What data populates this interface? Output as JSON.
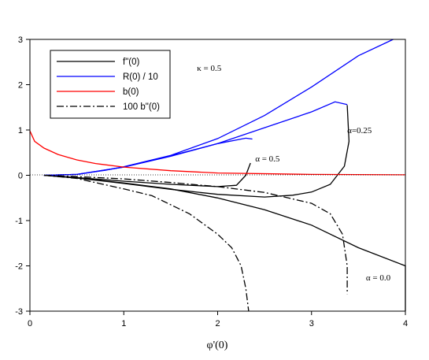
{
  "chart_data": {
    "type": "line",
    "xlabel": "φ'(0)",
    "ylabel": "",
    "xlim": [
      0,
      4
    ],
    "ylim": [
      -3,
      3
    ],
    "x_ticks": [
      "0",
      "1",
      "2",
      "3",
      "4"
    ],
    "y_ticks": [
      "-3",
      "-2",
      "-1",
      "0",
      "1",
      "2",
      "3"
    ],
    "grid": false,
    "legend_position": "top-left",
    "legend": [
      {
        "label": "f\"(0)",
        "color": "#000000",
        "dash": "solid"
      },
      {
        "label": "R(0) / 10",
        "color": "#0000ff",
        "dash": "solid"
      },
      {
        "label": "b(0)",
        "color": "#ff0000",
        "dash": "solid"
      },
      {
        "label": "100 b\"(0)",
        "color": "#000000",
        "dash": "dashdot"
      }
    ],
    "annotations": [
      {
        "text": "κ = 0.5",
        "x": 1.78,
        "y": 2.37
      },
      {
        "text": "α=0.25",
        "x": 3.38,
        "y": 1.0
      },
      {
        "text": "α = 0.5",
        "x": 2.4,
        "y": 0.37
      },
      {
        "text": "α = 0.0",
        "x": 3.58,
        "y": -2.25
      }
    ],
    "series": [
      {
        "color": "#000000",
        "dash": "solid",
        "points": [
          [
            0.15,
            0
          ],
          [
            0.5,
            -0.06
          ],
          [
            1.0,
            -0.17
          ],
          [
            1.5,
            -0.3
          ],
          [
            2.0,
            -0.5
          ],
          [
            2.5,
            -0.76
          ],
          [
            3.0,
            -1.1
          ],
          [
            3.5,
            -1.6
          ],
          [
            4.0,
            -2.0
          ],
          [
            4.0,
            -2.25
          ],
          [
            4.0,
            -3.0
          ]
        ]
      },
      {
        "color": "#000000",
        "dash": "solid",
        "points": [
          [
            0.15,
            0
          ],
          [
            0.5,
            -0.05
          ],
          [
            1.0,
            -0.13
          ],
          [
            1.5,
            -0.2
          ],
          [
            2.0,
            -0.25
          ],
          [
            2.2,
            -0.22
          ],
          [
            2.3,
            0.0
          ],
          [
            2.35,
            0.27
          ]
        ]
      },
      {
        "color": "#000000",
        "dash": "solid",
        "points": [
          [
            0.15,
            0
          ],
          [
            0.5,
            -0.06
          ],
          [
            1.0,
            -0.18
          ],
          [
            1.5,
            -0.31
          ],
          [
            2.0,
            -0.42
          ],
          [
            2.5,
            -0.48
          ],
          [
            2.8,
            -0.44
          ],
          [
            3.0,
            -0.37
          ],
          [
            3.2,
            -0.2
          ],
          [
            3.35,
            0.2
          ],
          [
            3.4,
            0.75
          ],
          [
            3.38,
            1.55
          ]
        ]
      },
      {
        "color": "#0000ff",
        "dash": "solid",
        "points": [
          [
            0.15,
            0
          ],
          [
            0.5,
            0.02
          ],
          [
            0.8,
            0.11
          ],
          [
            1.0,
            0.19
          ],
          [
            1.5,
            0.44
          ],
          [
            2.0,
            0.81
          ],
          [
            2.5,
            1.32
          ],
          [
            3.0,
            1.95
          ],
          [
            3.5,
            2.64
          ],
          [
            3.87,
            3.0
          ]
        ]
      },
      {
        "color": "#0000ff",
        "dash": "solid",
        "points": [
          [
            0.15,
            0
          ],
          [
            0.5,
            0.02
          ],
          [
            1.0,
            0.18
          ],
          [
            1.5,
            0.43
          ],
          [
            2.0,
            0.7
          ],
          [
            2.3,
            0.82
          ],
          [
            2.37,
            0.8
          ]
        ]
      },
      {
        "color": "#0000ff",
        "dash": "solid",
        "points": [
          [
            0.15,
            0
          ],
          [
            0.5,
            0.02
          ],
          [
            1.0,
            0.18
          ],
          [
            1.5,
            0.42
          ],
          [
            2.0,
            0.7
          ],
          [
            2.5,
            1.05
          ],
          [
            3.0,
            1.4
          ],
          [
            3.25,
            1.62
          ],
          [
            3.38,
            1.56
          ]
        ]
      },
      {
        "color": "#ff0000",
        "dash": "solid",
        "points": [
          [
            0.0,
            0.98
          ],
          [
            0.05,
            0.75
          ],
          [
            0.15,
            0.6
          ],
          [
            0.3,
            0.46
          ],
          [
            0.5,
            0.34
          ],
          [
            0.7,
            0.26
          ],
          [
            1.0,
            0.18
          ],
          [
            1.5,
            0.1
          ],
          [
            2.0,
            0.05
          ],
          [
            3.0,
            0.02
          ],
          [
            4.0,
            0.01
          ]
        ]
      },
      {
        "color": "#000000",
        "dash": "dashdot",
        "points": [
          [
            0.15,
            0
          ],
          [
            0.5,
            -0.07
          ],
          [
            1.0,
            -0.3
          ],
          [
            1.3,
            -0.45
          ],
          [
            1.7,
            -0.85
          ],
          [
            2.0,
            -1.3
          ],
          [
            2.15,
            -1.6
          ],
          [
            2.25,
            -2.0
          ],
          [
            2.3,
            -2.5
          ],
          [
            2.33,
            -3.0
          ]
        ]
      },
      {
        "color": "#000000",
        "dash": "dashdot",
        "points": [
          [
            0.15,
            0
          ],
          [
            0.5,
            -0.03
          ],
          [
            1.0,
            -0.08
          ],
          [
            1.5,
            -0.16
          ],
          [
            2.0,
            -0.25
          ],
          [
            2.5,
            -0.38
          ],
          [
            3.0,
            -0.62
          ],
          [
            3.2,
            -0.85
          ],
          [
            3.33,
            -1.3
          ],
          [
            3.38,
            -2.0
          ],
          [
            3.38,
            -2.62
          ]
        ]
      }
    ]
  }
}
